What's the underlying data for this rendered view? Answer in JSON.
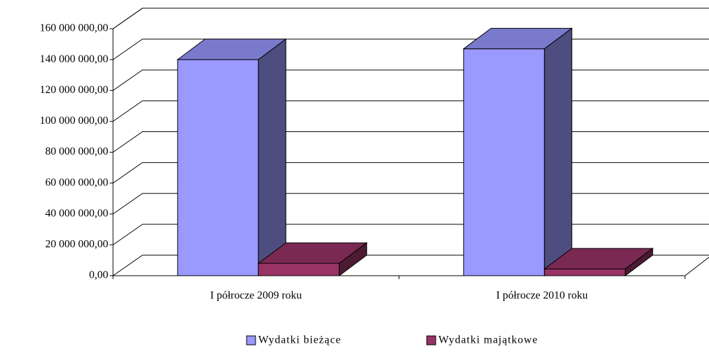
{
  "chart_data": {
    "type": "bar3d",
    "categories": [
      "I półrocze 2009 roku",
      "I półrocze 2010 roku"
    ],
    "series": [
      {
        "name": "Wydatki bieżące",
        "color": "#9999ff",
        "values": [
          140000000,
          147000000
        ]
      },
      {
        "name": "Wydatki majątkowe",
        "color": "#993366",
        "values": [
          8000000,
          4400000
        ]
      }
    ],
    "ylim": [
      0,
      160000000
    ],
    "yticks": [
      {
        "value": 0,
        "label": "0,00"
      },
      {
        "value": 20000000,
        "label": "20 000 000,00"
      },
      {
        "value": 40000000,
        "label": "40 000 000,00"
      },
      {
        "value": 60000000,
        "label": "60 000 000,00"
      },
      {
        "value": 80000000,
        "label": "80 000 000,00"
      },
      {
        "value": 100000000,
        "label": "100 000 000,00"
      },
      {
        "value": 120000000,
        "label": "120 000 000,00"
      },
      {
        "value": 140000000,
        "label": "140 000 000,00"
      },
      {
        "value": 160000000,
        "label": "160 000 000,00"
      }
    ],
    "grid": true,
    "legend": "bottom"
  }
}
